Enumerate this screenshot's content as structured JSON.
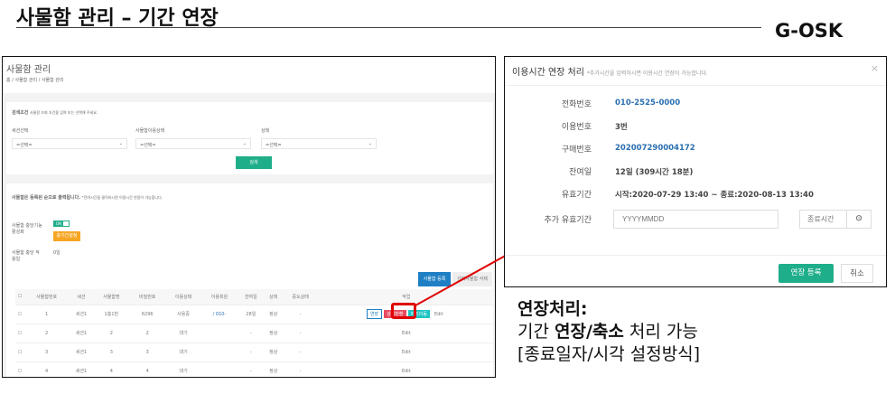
{
  "slide": {
    "title": "사물함 관리 – 기간 연장",
    "brand": "G-OSK"
  },
  "page": {
    "title": "사물함 관리",
    "breadcrumb": [
      "홈",
      "사물함 관리",
      "사물함 관리"
    ],
    "search": {
      "label": "검색조건",
      "hint": "사물함 조회 조건을 입력 또는 선택해 주세요.",
      "fields": [
        {
          "label": "세션선택",
          "value": "=선택="
        },
        {
          "label": "사물함이용상태",
          "value": "=선택="
        },
        {
          "label": "상태",
          "value": "=선택="
        }
      ],
      "button": "검색"
    },
    "list": {
      "heading": "사물함은 등록된 순으로 출력됩니다.",
      "hint": "*잔여시간을 클릭하시면 이용시간 연장이 가능합니다.",
      "toggle_label": "사물함 충당기능 활성화",
      "toggle_value": "ON",
      "period_button": "충기간설정",
      "apply_label": "사물함 충당 적용일",
      "apply_value": "0일",
      "register_button": "사물함 등록",
      "delete_button": "선택사물함 삭제",
      "columns": [
        "",
        "사물함번호",
        "세션",
        "사물함명",
        "비밀번호",
        "이용상태",
        "이용회원",
        "잔여일",
        "상태",
        "중도상태",
        "작업"
      ],
      "rows": [
        {
          "no": "1",
          "session": "세션1",
          "name": "1층1번",
          "pw": "6296",
          "use": "사용중",
          "member": "/ 010-",
          "remain": "28일",
          "state": "정상",
          "mid": "-",
          "actions": [
            "연장",
            "강제반환",
            "자리이동",
            "Edit"
          ]
        },
        {
          "no": "2",
          "session": "세션1",
          "name": "2",
          "pw": "2",
          "use": "대기",
          "member": "",
          "remain": "-",
          "state": "정상",
          "mid": "-",
          "actions": [
            "Edit"
          ]
        },
        {
          "no": "3",
          "session": "세션1",
          "name": "3",
          "pw": "3",
          "use": "대기",
          "member": "",
          "remain": "-",
          "state": "정상",
          "mid": "-",
          "actions": [
            "Edit"
          ]
        },
        {
          "no": "4",
          "session": "세션1",
          "name": "4",
          "pw": "4",
          "use": "대기",
          "member": "",
          "remain": "-",
          "state": "정상",
          "mid": "-",
          "actions": [
            "Edit"
          ]
        }
      ]
    }
  },
  "modal": {
    "title": "이용시간 연장 처리",
    "subtitle": "*추가시간을 입력하시면 이용시간 연장이 가능합니다.",
    "close": "×",
    "fields": [
      {
        "label": "전화번호",
        "value": "010-2525-0000",
        "link": true
      },
      {
        "label": "이용번호",
        "value": "3번",
        "link": false
      },
      {
        "label": "구매번호",
        "value": "202007290004172",
        "link": true
      },
      {
        "label": "잔여일",
        "value": "12일 (309시간 18분)",
        "link": false
      },
      {
        "label": "유효기간",
        "value": "시작:2020-07-29 13:40 ~ 종료:2020-08-13 13:40",
        "link": false
      }
    ],
    "extra_label": "추가 유효기간",
    "date_placeholder": "YYYYMMDD",
    "time_placeholder": "종료시간",
    "submit": "연장 등록",
    "cancel": "취소"
  },
  "caption": {
    "title": "연장처리:",
    "line2_pre": "기간 ",
    "line2_b1": "연장/축소",
    "line2_post": " 처리 가능",
    "line3": "[종료일자/시각 설정방식]"
  },
  "colors": {
    "accent_green": "#1fae8a",
    "primary_blue": "#1f7fc4",
    "highlight_red": "#e00000",
    "warning_orange": "#f6a623"
  }
}
